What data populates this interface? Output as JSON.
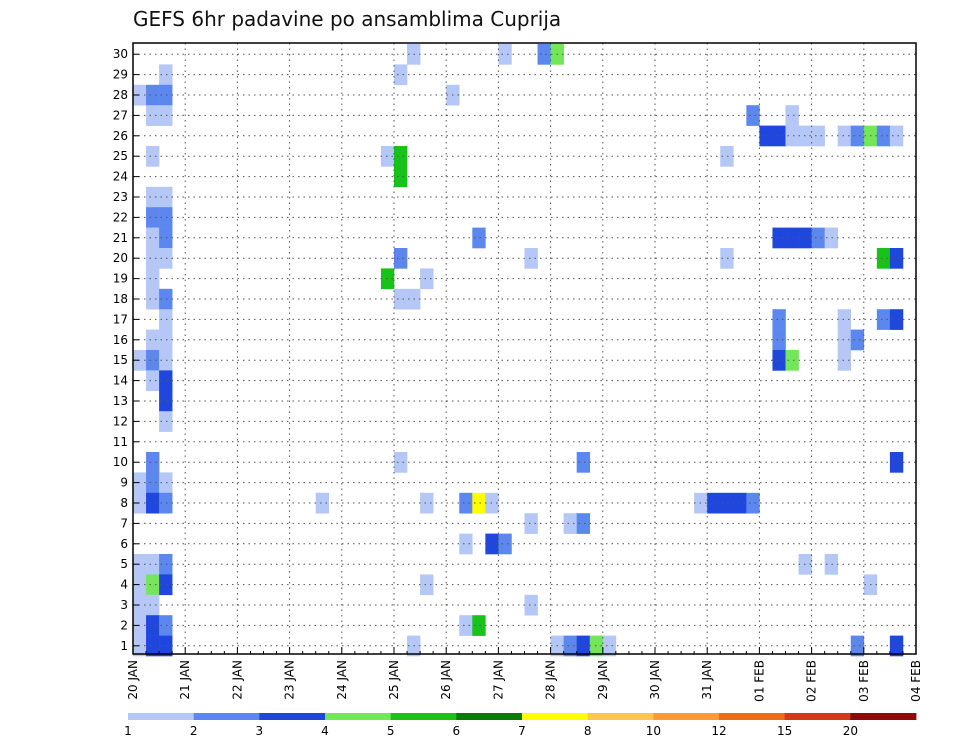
{
  "chart_data": {
    "type": "heatmap",
    "title": "GEFS 6hr padavine po ansamblima Cuprija",
    "xlabel": "",
    "ylabel": "",
    "x_ticks": [
      "20 JAN",
      "21 JAN",
      "22 JAN",
      "23 JAN",
      "24 JAN",
      "25 JAN",
      "26 JAN",
      "27 JAN",
      "28 JAN",
      "29 JAN",
      "30 JAN",
      "31 JAN",
      "01 FEB",
      "02 FEB",
      "03 FEB",
      "04 FEB"
    ],
    "x_range_6h_steps": [
      0,
      60
    ],
    "y_ticks": [
      1,
      2,
      3,
      4,
      5,
      6,
      7,
      8,
      9,
      10,
      11,
      12,
      13,
      14,
      15,
      16,
      17,
      18,
      19,
      20,
      21,
      22,
      23,
      24,
      25,
      26,
      27,
      28,
      29,
      30
    ],
    "grid": true,
    "colorbar": {
      "labels": [
        "1",
        "2",
        "3",
        "4",
        "5",
        "6",
        "7",
        "8",
        "10",
        "12",
        "15",
        "20"
      ],
      "colors": [
        "#b4c7f6",
        "#5b87ee",
        "#1f47dd",
        "#74e65a",
        "#18c218",
        "#0b7a0b",
        "#ffff00",
        "#ffc74a",
        "#ff9c2b",
        "#f26b12",
        "#d8351a",
        "#8b0a0a"
      ]
    },
    "class_colors": [
      "#b4c7f6",
      "#5b87ee",
      "#1f47dd",
      "#74e65a",
      "#18c218",
      "#0b7a0b",
      "#ffff00"
    ],
    "cells": [
      [
        30,
        21,
        0
      ],
      [
        30,
        28,
        0
      ],
      [
        30,
        31,
        1
      ],
      [
        30,
        32,
        3
      ],
      [
        29,
        2,
        0
      ],
      [
        29,
        20,
        0
      ],
      [
        28,
        0,
        0
      ],
      [
        28,
        1,
        1
      ],
      [
        28,
        2,
        1
      ],
      [
        28,
        24,
        0
      ],
      [
        27,
        1,
        0
      ],
      [
        27,
        2,
        0
      ],
      [
        27,
        47,
        1
      ],
      [
        27,
        50,
        0
      ],
      [
        26,
        48,
        2
      ],
      [
        26,
        49,
        2
      ],
      [
        26,
        50,
        0
      ],
      [
        26,
        51,
        0
      ],
      [
        26,
        52,
        0
      ],
      [
        26,
        54,
        0
      ],
      [
        26,
        55,
        1
      ],
      [
        26,
        56,
        3
      ],
      [
        26,
        57,
        1
      ],
      [
        26,
        58,
        0
      ],
      [
        25,
        1,
        0
      ],
      [
        25,
        19,
        0
      ],
      [
        25,
        20,
        4
      ],
      [
        25,
        45,
        0
      ],
      [
        24,
        20,
        4
      ],
      [
        23,
        1,
        0
      ],
      [
        23,
        2,
        0
      ],
      [
        22,
        1,
        1
      ],
      [
        22,
        2,
        1
      ],
      [
        21,
        1,
        0
      ],
      [
        21,
        2,
        1
      ],
      [
        21,
        26,
        1
      ],
      [
        21,
        49,
        2
      ],
      [
        21,
        50,
        2
      ],
      [
        21,
        51,
        2
      ],
      [
        21,
        52,
        1
      ],
      [
        21,
        53,
        0
      ],
      [
        20,
        1,
        0
      ],
      [
        20,
        2,
        0
      ],
      [
        20,
        20,
        1
      ],
      [
        20,
        30,
        0
      ],
      [
        20,
        45,
        0
      ],
      [
        20,
        57,
        4
      ],
      [
        20,
        58,
        2
      ],
      [
        19,
        1,
        0
      ],
      [
        19,
        19,
        4
      ],
      [
        19,
        22,
        0
      ],
      [
        18,
        1,
        0
      ],
      [
        18,
        2,
        1
      ],
      [
        18,
        20,
        0
      ],
      [
        18,
        21,
        0
      ],
      [
        17,
        2,
        0
      ],
      [
        17,
        49,
        1
      ],
      [
        17,
        54,
        0
      ],
      [
        17,
        57,
        1
      ],
      [
        17,
        58,
        2
      ],
      [
        16,
        1,
        0
      ],
      [
        16,
        2,
        0
      ],
      [
        16,
        49,
        1
      ],
      [
        16,
        54,
        0
      ],
      [
        16,
        55,
        1
      ],
      [
        15,
        0,
        0
      ],
      [
        15,
        1,
        1
      ],
      [
        15,
        2,
        0
      ],
      [
        15,
        49,
        2
      ],
      [
        15,
        50,
        3
      ],
      [
        15,
        54,
        0
      ],
      [
        14,
        1,
        0
      ],
      [
        14,
        2,
        2
      ],
      [
        13,
        2,
        2
      ],
      [
        12,
        2,
        0
      ],
      [
        10,
        1,
        1
      ],
      [
        10,
        20,
        0
      ],
      [
        10,
        34,
        1
      ],
      [
        10,
        58,
        2
      ],
      [
        9,
        0,
        0
      ],
      [
        9,
        1,
        1
      ],
      [
        9,
        2,
        0
      ],
      [
        8,
        0,
        0
      ],
      [
        8,
        1,
        2
      ],
      [
        8,
        2,
        1
      ],
      [
        8,
        14,
        0
      ],
      [
        8,
        22,
        0
      ],
      [
        8,
        25,
        1
      ],
      [
        8,
        26,
        6
      ],
      [
        8,
        27,
        0
      ],
      [
        8,
        43,
        0
      ],
      [
        8,
        44,
        2
      ],
      [
        8,
        45,
        2
      ],
      [
        8,
        46,
        2
      ],
      [
        8,
        47,
        1
      ],
      [
        7,
        30,
        0
      ],
      [
        7,
        33,
        0
      ],
      [
        7,
        34,
        1
      ],
      [
        6,
        25,
        0
      ],
      [
        6,
        27,
        2
      ],
      [
        6,
        28,
        1
      ],
      [
        5,
        0,
        0
      ],
      [
        5,
        1,
        0
      ],
      [
        5,
        2,
        1
      ],
      [
        5,
        51,
        0
      ],
      [
        5,
        53,
        0
      ],
      [
        4,
        0,
        0
      ],
      [
        4,
        1,
        3
      ],
      [
        4,
        2,
        2
      ],
      [
        4,
        22,
        0
      ],
      [
        4,
        56,
        0
      ],
      [
        3,
        0,
        0
      ],
      [
        3,
        1,
        0
      ],
      [
        3,
        30,
        0
      ],
      [
        2,
        0,
        0
      ],
      [
        2,
        1,
        2
      ],
      [
        2,
        2,
        1
      ],
      [
        2,
        25,
        0
      ],
      [
        2,
        26,
        4
      ],
      [
        1,
        0,
        0
      ],
      [
        1,
        1,
        2
      ],
      [
        1,
        2,
        2
      ],
      [
        1,
        21,
        0
      ],
      [
        1,
        32,
        0
      ],
      [
        1,
        33,
        1
      ],
      [
        1,
        34,
        2
      ],
      [
        1,
        35,
        3
      ],
      [
        1,
        36,
        0
      ],
      [
        1,
        55,
        1
      ],
      [
        1,
        58,
        2
      ]
    ]
  }
}
